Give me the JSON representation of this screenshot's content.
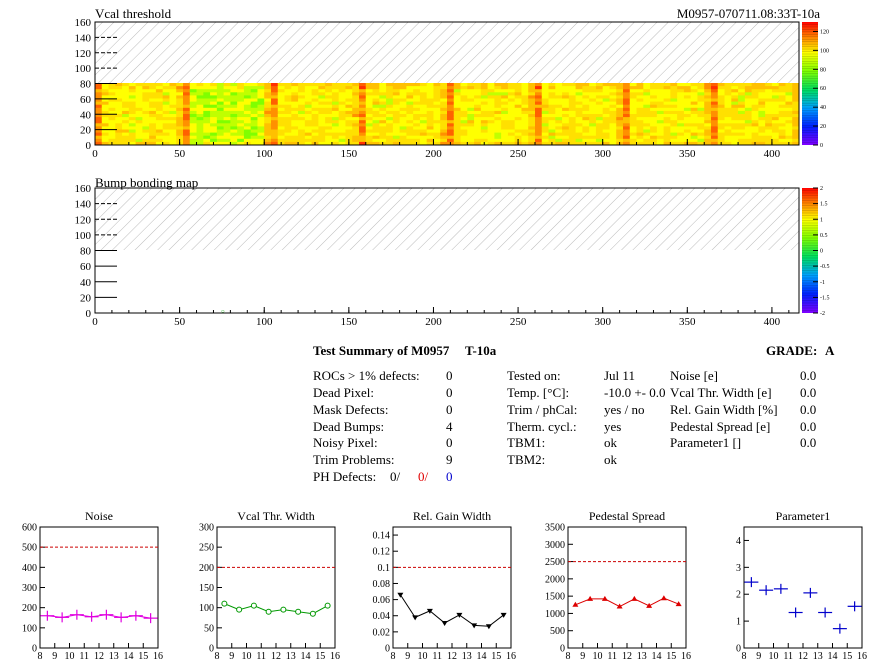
{
  "module_id": "M0957-070711.08:33T-10a",
  "vcal_map": {
    "title": "Vcal threshold",
    "x_ticks": [
      "0",
      "50",
      "100",
      "150",
      "200",
      "250",
      "300",
      "350",
      "400"
    ],
    "y_ticks": [
      "0",
      "20",
      "40",
      "60",
      "80",
      "100",
      "120",
      "140",
      "160"
    ],
    "scale_ticks": [
      "0",
      "20",
      "40",
      "60",
      "80",
      "100",
      "120"
    ],
    "xlim": [
      0,
      416
    ],
    "ylim": [
      0,
      160
    ],
    "data_rows": 80
  },
  "bump_map": {
    "title": "Bump bonding map",
    "x_ticks": [
      "0",
      "50",
      "100",
      "150",
      "200",
      "250",
      "300",
      "350",
      "400"
    ],
    "y_ticks": [
      "0",
      "20",
      "40",
      "60",
      "80",
      "100",
      "120",
      "140",
      "160"
    ],
    "scale_ticks": [
      "-2",
      "-1.5",
      "-1",
      "-0.5",
      "0",
      "0.5",
      "1",
      "1.5",
      "2"
    ]
  },
  "summary": {
    "title": "Test Summary of M0957",
    "test_id": "T-10a",
    "grade_label": "GRADE:",
    "grade": "A",
    "left": [
      {
        "label": "ROCs > 1% defects:",
        "value": "0"
      },
      {
        "label": "Dead Pixel:",
        "value": "0"
      },
      {
        "label": "Mask Defects:",
        "value": "0"
      },
      {
        "label": "Dead Bumps:",
        "value": "4"
      },
      {
        "label": "Noisy Pixel:",
        "value": "0"
      },
      {
        "label": "Trim Problems:",
        "value": "9"
      }
    ],
    "ph_label": "PH Defects:",
    "ph_values": [
      "0/",
      "0/",
      "0"
    ],
    "middle": [
      {
        "label": "Tested on:",
        "value": "Jul 11"
      },
      {
        "label": "Temp. [°C]:",
        "value": "-10.0 +- 0.0"
      },
      {
        "label": "Trim / phCal:",
        "value": "yes / no"
      },
      {
        "label": "Therm. cycl.:",
        "value": "yes"
      },
      {
        "label": "TBM1:",
        "value": "ok"
      },
      {
        "label": "TBM2:",
        "value": "ok"
      }
    ],
    "right": [
      {
        "label": "Noise [e]",
        "value": "0.0"
      },
      {
        "label": "Vcal Thr. Width [e]",
        "value": "0.0"
      },
      {
        "label": "Rel. Gain Width [%]",
        "value": "0.0"
      },
      {
        "label": "Pedestal Spread [e]",
        "value": "0.0"
      },
      {
        "label": "Parameter1 []",
        "value": "0.0"
      }
    ]
  },
  "chart_data": [
    {
      "type": "line",
      "title": "Noise",
      "x": [
        8.5,
        9.5,
        10.5,
        11.5,
        12.5,
        13.5,
        14.5,
        15.5
      ],
      "values": [
        160,
        152,
        165,
        155,
        165,
        152,
        160,
        148
      ],
      "marker": "cross",
      "color": "#e000e0",
      "ylim": [
        0,
        600
      ],
      "y_ticks": [
        0,
        100,
        200,
        300,
        400,
        500,
        600
      ],
      "xlim": [
        8,
        16
      ],
      "x_ticks": [
        8,
        9,
        10,
        11,
        12,
        13,
        14,
        15,
        16
      ],
      "threshold": 500
    },
    {
      "type": "line",
      "title": "Vcal Thr. Width",
      "x": [
        8.5,
        9.5,
        10.5,
        11.5,
        12.5,
        13.5,
        14.5,
        15.5
      ],
      "values": [
        110,
        95,
        105,
        90,
        95,
        90,
        85,
        105
      ],
      "marker": "circle",
      "color": "#009900",
      "ylim": [
        0,
        300
      ],
      "y_ticks": [
        0,
        50,
        100,
        150,
        200,
        250,
        300
      ],
      "xlim": [
        8,
        16
      ],
      "x_ticks": [
        8,
        9,
        10,
        11,
        12,
        13,
        14,
        15,
        16
      ],
      "threshold": 200
    },
    {
      "type": "line",
      "title": "Rel. Gain Width",
      "x": [
        8.5,
        9.5,
        10.5,
        11.5,
        12.5,
        13.5,
        14.5,
        15.5
      ],
      "values": [
        0.066,
        0.038,
        0.046,
        0.031,
        0.041,
        0.028,
        0.027,
        0.041
      ],
      "marker": "triangle-down",
      "color": "#000000",
      "ylim": [
        0,
        0.15
      ],
      "y_ticks": [
        0,
        0.02,
        0.04,
        0.06,
        0.08,
        0.1,
        0.12,
        0.14
      ],
      "xlim": [
        8,
        16
      ],
      "x_ticks": [
        8,
        9,
        10,
        11,
        12,
        13,
        14,
        15,
        16
      ],
      "threshold": 0.1
    },
    {
      "type": "line",
      "title": "Pedestal Spread",
      "x": [
        8.5,
        9.5,
        10.5,
        11.5,
        12.5,
        13.5,
        14.5,
        15.5
      ],
      "values": [
        1250,
        1420,
        1420,
        1200,
        1420,
        1220,
        1440,
        1270
      ],
      "marker": "triangle-up",
      "color": "#dd0000",
      "ylim": [
        0,
        3500
      ],
      "y_ticks": [
        0,
        500,
        1000,
        1500,
        2000,
        2500,
        3000,
        3500
      ],
      "xlim": [
        8,
        16
      ],
      "x_ticks": [
        8,
        9,
        10,
        11,
        12,
        13,
        14,
        15,
        16
      ],
      "threshold": 2500
    },
    {
      "type": "scatter",
      "title": "Parameter1",
      "x": [
        8.5,
        9.5,
        10.5,
        11.5,
        12.5,
        13.5,
        14.5,
        15.5
      ],
      "values": [
        2.45,
        2.15,
        2.2,
        1.32,
        2.05,
        1.32,
        0.72,
        1.55
      ],
      "marker": "cross",
      "color": "#0000cc",
      "ylim": [
        0,
        4.5
      ],
      "y_ticks": [
        0,
        1,
        2,
        3,
        4
      ],
      "xlim": [
        8,
        16
      ],
      "x_ticks": [
        8,
        9,
        10,
        11,
        12,
        13,
        14,
        15,
        16
      ]
    }
  ]
}
